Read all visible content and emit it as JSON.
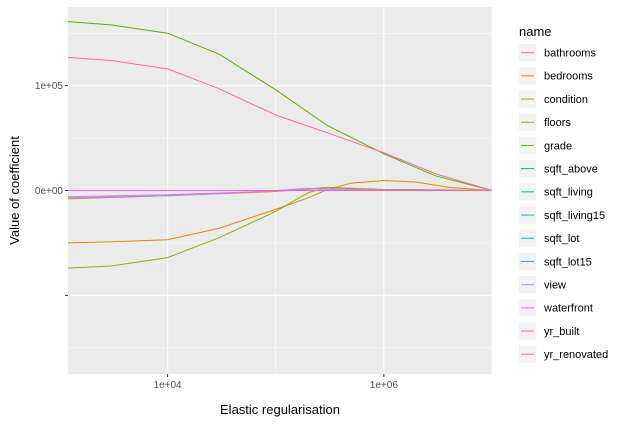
{
  "chart_data": {
    "type": "line",
    "title": "",
    "xlabel": "Elastic regularisation",
    "ylabel": "Value of coefficient",
    "x_scale": "log10",
    "xlim": [
      1200,
      10000000
    ],
    "ylim": [
      -175000,
      175000
    ],
    "x_ticks": [
      10000,
      1000000
    ],
    "x_tick_labels": [
      "1e+04",
      "1e+06"
    ],
    "y_ticks": [
      -100000,
      0,
      100000
    ],
    "y_tick_labels": [
      "",
      "0e+00",
      "1e+05"
    ],
    "grid": true,
    "background": "#ebebeb",
    "legend_title": "name",
    "legend_position": "right",
    "series": [
      {
        "name": "bathrooms",
        "color": "#F8766D",
        "x": [
          1200,
          3000,
          10000,
          30000,
          100000,
          300000,
          1000000,
          3000000,
          10000000
        ],
        "y": [
          0,
          0,
          0,
          0,
          0,
          0,
          0,
          0,
          0
        ]
      },
      {
        "name": "bedrooms",
        "color": "#E38900",
        "x": [
          1200,
          3000,
          10000,
          30000,
          100000,
          200000,
          300000,
          500000,
          1000000,
          2000000,
          4000000,
          10000000
        ],
        "y": [
          -50000,
          -49000,
          -47000,
          -36000,
          -18000,
          -7000,
          1000,
          7000,
          9500,
          8000,
          3000,
          0
        ]
      },
      {
        "name": "condition",
        "color": "#C49A00",
        "x": [
          1200,
          10000,
          100000,
          300000,
          1000000,
          2000000,
          10000000
        ],
        "y": [
          -8000,
          -5000,
          -1000,
          3000,
          1000,
          1000,
          0
        ]
      },
      {
        "name": "floors",
        "color": "#99A800",
        "x": [
          1200,
          3000,
          10000,
          30000,
          100000,
          200000,
          300000,
          1000000,
          10000000
        ],
        "y": [
          -74000,
          -72000,
          -64000,
          -45000,
          -20000,
          -2000,
          3000,
          0,
          0
        ]
      },
      {
        "name": "grade",
        "color": "#53B400",
        "x": [
          1200,
          3000,
          10000,
          30000,
          100000,
          300000,
          1000000,
          3000000,
          10000000
        ],
        "y": [
          161000,
          158000,
          150000,
          130000,
          96000,
          62000,
          35000,
          14000,
          0
        ]
      },
      {
        "name": "sqft_above",
        "color": "#00BC56",
        "x": [
          1200,
          100000,
          10000000
        ],
        "y": [
          0,
          0,
          0
        ]
      },
      {
        "name": "sqft_living",
        "color": "#00C094",
        "x": [
          1200,
          100000,
          10000000
        ],
        "y": [
          0,
          0,
          0
        ]
      },
      {
        "name": "sqft_living15",
        "color": "#00BFC4",
        "x": [
          1200,
          100000,
          10000000
        ],
        "y": [
          0,
          0,
          0
        ]
      },
      {
        "name": "sqft_lot",
        "color": "#00B6EB",
        "x": [
          1200,
          100000,
          10000000
        ],
        "y": [
          0,
          0,
          0
        ]
      },
      {
        "name": "sqft_lot15",
        "color": "#06A4FF",
        "x": [
          1200,
          100000,
          10000000
        ],
        "y": [
          0,
          0,
          0
        ]
      },
      {
        "name": "view",
        "color": "#A58AFF",
        "x": [
          1200,
          10000,
          30000,
          100000,
          200000,
          300000,
          1000000,
          10000000
        ],
        "y": [
          -7000,
          -5000,
          -3000,
          0,
          2000,
          1500,
          500,
          0
        ]
      },
      {
        "name": "waterfront",
        "color": "#DF70F8",
        "x": [
          1200,
          10000,
          100000,
          200000,
          1000000,
          10000000
        ],
        "y": [
          -6000,
          -4000,
          -500,
          500,
          0,
          0
        ]
      },
      {
        "name": "yr_built",
        "color": "#FB61D7",
        "x": [
          1200,
          100000,
          10000000
        ],
        "y": [
          0,
          0,
          0
        ]
      },
      {
        "name": "yr_renovated",
        "color": "#FF66A8",
        "x": [
          1200,
          3000,
          10000,
          30000,
          100000,
          300000,
          1000000,
          3000000,
          10000000
        ],
        "y": [
          127000,
          124000,
          116000,
          97000,
          72000,
          55000,
          36000,
          16000,
          0
        ]
      }
    ]
  }
}
